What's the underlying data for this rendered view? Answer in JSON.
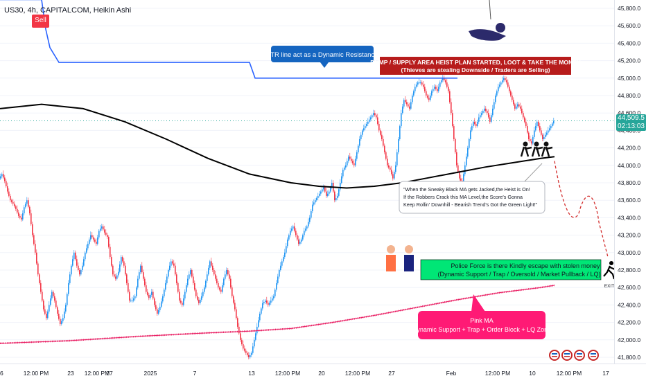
{
  "header": {
    "symbol": "US30, 4h, CAPITALCOM, Heikin Ashi",
    "signal": "Sell"
  },
  "price_axis": {
    "ticks": [
      "45,800.0",
      "45,600.0",
      "45,400.0",
      "45,200.0",
      "45,000.0",
      "44,800.0",
      "44,600.0",
      "44,400.0",
      "44,200.0",
      "44,000.0",
      "43,800.0",
      "43,600.0",
      "43,400.0",
      "43,200.0",
      "43,000.0",
      "42,800.0",
      "42,600.0",
      "42,400.0",
      "42,200.0",
      "42,000.0",
      "41,800.0"
    ],
    "current_price": "44,509.5",
    "countdown": "02:13:03"
  },
  "time_axis": {
    "ticks": [
      "6",
      "12:00 PM",
      "23",
      "12:00 PM",
      "27",
      "2025",
      "7",
      "13",
      "12:00 PM",
      "20",
      "12:00 PM",
      "27",
      "Feb",
      "12:00 PM",
      "10",
      "12:00 PM",
      "17"
    ]
  },
  "annotations": {
    "atr_note": "ATR line act as a Dynamic Resistance",
    "supply_title": "DUMP / SUPPLY AREA HEIST PLAN STARTED, LOOT & TAKE THE MONEY",
    "supply_sub": "(Thieves are stealing Downside / Traders are Selling)",
    "quote_1": "\"When the Sneaky Black MA gets Jacked,the Heist is On!",
    "quote_2": "If the Robbers Crack this MA Level,the Score's Gonna",
    "quote_3": "Keep Rollin' Downhill - Bearish Trend's Got the Green Light!\"",
    "police_1": "Police Force is there Kindly escape with stolen money",
    "police_2": "(Dynamic Support / Trap / Oversold / Market Pullback / LQ)",
    "pink_1": "Pink MA",
    "pink_2": "Dynamic Support + Trap + Order Block + LQ Zone",
    "exit_label": "EXIT"
  },
  "colors": {
    "up": "#2196f3",
    "down": "#f23645",
    "atr_line": "#2962ff",
    "black_ma": "#000000",
    "pink_ma": "#e91e63",
    "supply_box": "#b71c1c",
    "atr_box": "#1565c0",
    "police_box": "#00e676",
    "pink_box": "#ff1a75",
    "price_label": "#26a69a"
  },
  "chart_data": {
    "type": "candlestick",
    "ylim": [
      41700,
      45900
    ],
    "style": "Heikin Ashi",
    "y_ticks": [
      41800,
      42000,
      42200,
      42400,
      42600,
      42800,
      43000,
      43200,
      43400,
      43600,
      43800,
      44000,
      44200,
      44400,
      44600,
      44800,
      45000,
      45200,
      45400,
      45600,
      45800
    ],
    "x_ticks": [
      "6",
      "12:00 PM",
      "23",
      "12:00 PM",
      "27",
      "2025",
      "7",
      "13",
      "12:00 PM",
      "20",
      "12:00 PM",
      "27",
      "Feb",
      "12:00 PM",
      "10",
      "12:00 PM",
      "17"
    ],
    "price_path": [
      [
        0,
        43850
      ],
      [
        4,
        43900
      ],
      [
        8,
        43820
      ],
      [
        12,
        43700
      ],
      [
        16,
        43600
      ],
      [
        20,
        43560
      ],
      [
        24,
        43500
      ],
      [
        28,
        43420
      ],
      [
        32,
        43380
      ],
      [
        36,
        43520
      ],
      [
        40,
        43600
      ],
      [
        44,
        43450
      ],
      [
        48,
        43200
      ],
      [
        52,
        43000
      ],
      [
        56,
        42750
      ],
      [
        60,
        42550
      ],
      [
        64,
        42350
      ],
      [
        68,
        42250
      ],
      [
        72,
        42400
      ],
      [
        76,
        42550
      ],
      [
        80,
        42450
      ],
      [
        84,
        42300
      ],
      [
        88,
        42180
      ],
      [
        92,
        42250
      ],
      [
        96,
        42400
      ],
      [
        100,
        42650
      ],
      [
        104,
        42850
      ],
      [
        108,
        43000
      ],
      [
        112,
        42850
      ],
      [
        116,
        42750
      ],
      [
        120,
        42850
      ],
      [
        124,
        43000
      ],
      [
        128,
        43100
      ],
      [
        132,
        43200
      ],
      [
        136,
        43150
      ],
      [
        140,
        43100
      ],
      [
        144,
        43250
      ],
      [
        148,
        43300
      ],
      [
        152,
        43230
      ],
      [
        156,
        43180
      ],
      [
        160,
        42950
      ],
      [
        164,
        42750
      ],
      [
        168,
        42700
      ],
      [
        172,
        42780
      ],
      [
        176,
        42950
      ],
      [
        180,
        42850
      ],
      [
        184,
        42650
      ],
      [
        188,
        42450
      ],
      [
        192,
        42450
      ],
      [
        196,
        42500
      ],
      [
        200,
        42700
      ],
      [
        204,
        42850
      ],
      [
        208,
        42700
      ],
      [
        212,
        42550
      ],
      [
        216,
        42480
      ],
      [
        220,
        42550
      ],
      [
        224,
        42400
      ],
      [
        228,
        42300
      ],
      [
        232,
        42380
      ],
      [
        236,
        42500
      ],
      [
        240,
        42650
      ],
      [
        244,
        42800
      ],
      [
        248,
        42900
      ],
      [
        252,
        42850
      ],
      [
        256,
        42650
      ],
      [
        260,
        42450
      ],
      [
        264,
        42400
      ],
      [
        268,
        42550
      ],
      [
        272,
        42700
      ],
      [
        276,
        42800
      ],
      [
        280,
        42650
      ],
      [
        284,
        42500
      ],
      [
        288,
        42420
      ],
      [
        292,
        42500
      ],
      [
        296,
        42600
      ],
      [
        300,
        42750
      ],
      [
        304,
        42900
      ],
      [
        308,
        42800
      ],
      [
        312,
        42700
      ],
      [
        316,
        42600
      ],
      [
        320,
        42550
      ],
      [
        324,
        42700
      ],
      [
        328,
        42800
      ],
      [
        332,
        42700
      ],
      [
        336,
        42500
      ],
      [
        340,
        42350
      ],
      [
        344,
        42150
      ],
      [
        348,
        42000
      ],
      [
        352,
        41900
      ],
      [
        356,
        41850
      ],
      [
        360,
        41800
      ],
      [
        364,
        41850
      ],
      [
        368,
        42000
      ],
      [
        372,
        42150
      ],
      [
        376,
        42300
      ],
      [
        380,
        42420
      ],
      [
        384,
        42450
      ],
      [
        388,
        42400
      ],
      [
        392,
        42450
      ],
      [
        396,
        42500
      ],
      [
        400,
        42650
      ],
      [
        404,
        42800
      ],
      [
        408,
        42900
      ],
      [
        412,
        43000
      ],
      [
        416,
        43150
      ],
      [
        420,
        43250
      ],
      [
        424,
        43300
      ],
      [
        428,
        43200
      ],
      [
        432,
        43100
      ],
      [
        436,
        43150
      ],
      [
        440,
        43250
      ],
      [
        444,
        43300
      ],
      [
        448,
        43400
      ],
      [
        452,
        43550
      ],
      [
        456,
        43600
      ],
      [
        460,
        43650
      ],
      [
        464,
        43700
      ],
      [
        468,
        43750
      ],
      [
        472,
        43650
      ],
      [
        476,
        43700
      ],
      [
        480,
        43800
      ],
      [
        484,
        43600
      ],
      [
        488,
        43650
      ],
      [
        492,
        43800
      ],
      [
        496,
        43950
      ],
      [
        500,
        44000
      ],
      [
        504,
        44100
      ],
      [
        508,
        44050
      ],
      [
        512,
        44000
      ],
      [
        516,
        44150
      ],
      [
        520,
        44300
      ],
      [
        524,
        44400
      ],
      [
        528,
        44450
      ],
      [
        532,
        44500
      ],
      [
        536,
        44550
      ],
      [
        540,
        44600
      ],
      [
        544,
        44550
      ],
      [
        548,
        44400
      ],
      [
        552,
        44300
      ],
      [
        556,
        44150
      ],
      [
        560,
        44000
      ],
      [
        564,
        43950
      ],
      [
        568,
        43850
      ],
      [
        572,
        44000
      ],
      [
        576,
        44300
      ],
      [
        580,
        44600
      ],
      [
        584,
        44750
      ],
      [
        588,
        44700
      ],
      [
        592,
        44650
      ],
      [
        596,
        44800
      ],
      [
        600,
        44900
      ],
      [
        604,
        44950
      ],
      [
        608,
        44950
      ],
      [
        612,
        44900
      ],
      [
        616,
        44800
      ],
      [
        620,
        44750
      ],
      [
        624,
        44850
      ],
      [
        628,
        44900
      ],
      [
        632,
        44850
      ],
      [
        636,
        44950
      ],
      [
        640,
        45000
      ],
      [
        644,
        44950
      ],
      [
        648,
        44850
      ],
      [
        652,
        44600
      ],
      [
        656,
        44300
      ],
      [
        660,
        44000
      ],
      [
        664,
        43850
      ],
      [
        668,
        43800
      ],
      [
        672,
        44000
      ],
      [
        676,
        44200
      ],
      [
        680,
        44400
      ],
      [
        684,
        44500
      ],
      [
        688,
        44450
      ],
      [
        692,
        44550
      ],
      [
        696,
        44600
      ],
      [
        700,
        44650
      ],
      [
        704,
        44600
      ],
      [
        708,
        44500
      ],
      [
        712,
        44650
      ],
      [
        716,
        44800
      ],
      [
        720,
        44900
      ],
      [
        724,
        44950
      ],
      [
        728,
        45000
      ],
      [
        732,
        44950
      ],
      [
        736,
        44850
      ],
      [
        740,
        44750
      ],
      [
        744,
        44650
      ],
      [
        748,
        44700
      ],
      [
        752,
        44650
      ],
      [
        756,
        44550
      ],
      [
        760,
        44450
      ],
      [
        764,
        44300
      ],
      [
        768,
        44250
      ],
      [
        772,
        44400
      ],
      [
        776,
        44500
      ],
      [
        780,
        44400
      ],
      [
        784,
        44300
      ],
      [
        788,
        44350
      ],
      [
        792,
        44400
      ],
      [
        796,
        44450
      ],
      [
        800,
        44510
      ]
    ],
    "series": [
      {
        "name": "",
        "style": "black-ma",
        "points": [
          [
            0,
            44650
          ],
          [
            60,
            44700
          ],
          [
            120,
            44650
          ],
          [
            180,
            44500
          ],
          [
            240,
            44300
          ],
          [
            300,
            44080
          ],
          [
            360,
            43900
          ],
          [
            420,
            43800
          ],
          [
            460,
            43760
          ],
          [
            500,
            43740
          ],
          [
            540,
            43760
          ],
          [
            580,
            43800
          ],
          [
            620,
            43860
          ],
          [
            660,
            43920
          ],
          [
            700,
            43980
          ],
          [
            740,
            44030
          ],
          [
            780,
            44080
          ],
          [
            800,
            44100
          ]
        ]
      },
      {
        "name": "",
        "style": "pink-ma",
        "points": [
          [
            0,
            41960
          ],
          [
            100,
            41990
          ],
          [
            200,
            42040
          ],
          [
            300,
            42080
          ],
          [
            360,
            42100
          ],
          [
            420,
            42130
          ],
          [
            480,
            42200
          ],
          [
            540,
            42280
          ],
          [
            600,
            42370
          ],
          [
            660,
            42460
          ],
          [
            720,
            42540
          ],
          [
            780,
            42600
          ],
          [
            800,
            42625
          ]
        ]
      },
      {
        "name": "",
        "style": "atr-step",
        "points": [
          [
            0,
            45900
          ],
          [
            60,
            45900
          ],
          [
            66,
            45560
          ],
          [
            72,
            45350
          ],
          [
            85,
            45180
          ],
          [
            360,
            45180
          ],
          [
            368,
            45000
          ],
          [
            660,
            45000
          ]
        ]
      },
      {
        "name": "",
        "style": "projection",
        "points": [
          [
            800,
            44050
          ],
          [
            810,
            43800
          ],
          [
            820,
            43550
          ],
          [
            830,
            43400
          ],
          [
            840,
            43550
          ],
          [
            850,
            43700
          ],
          [
            860,
            43500
          ],
          [
            870,
            43150
          ],
          [
            878,
            42950
          ]
        ]
      }
    ]
  }
}
